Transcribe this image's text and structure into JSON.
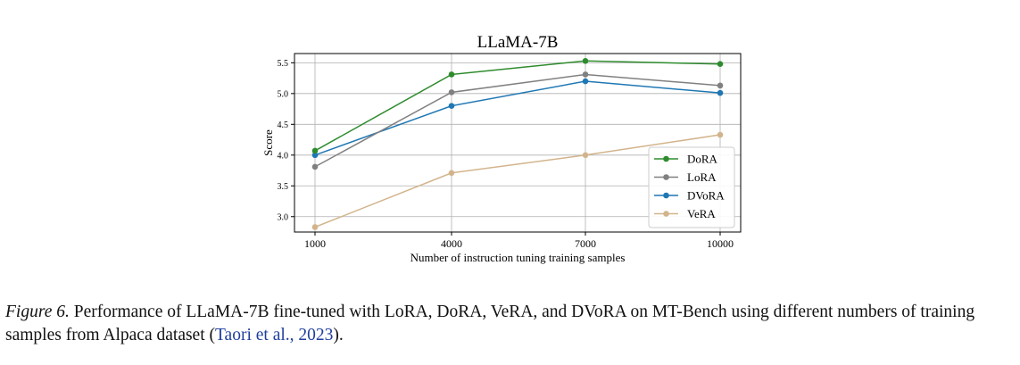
{
  "chart_data": {
    "type": "line",
    "title": "LLaMA-7B",
    "xlabel": "Number of instruction tuning training samples",
    "ylabel": "Score",
    "categories": [
      "1000",
      "4000",
      "7000",
      "10000"
    ],
    "y_ticks": [
      "3.0",
      "3.5",
      "4.0",
      "4.5",
      "5.0",
      "5.5"
    ],
    "ylim": [
      2.75,
      5.65
    ],
    "grid": true,
    "legend_position": "lower-right",
    "series": [
      {
        "name": "DoRA",
        "color": "#2e8b2e",
        "values": [
          4.07,
          5.31,
          5.53,
          5.48
        ]
      },
      {
        "name": "LoRA",
        "color": "#808080",
        "values": [
          3.81,
          5.02,
          5.31,
          5.13
        ]
      },
      {
        "name": "DVoRA",
        "color": "#1f77b4",
        "values": [
          4.0,
          4.8,
          5.2,
          5.01
        ]
      },
      {
        "name": "VeRA",
        "color": "#d2b48c",
        "values": [
          2.83,
          3.71,
          4.0,
          4.33
        ]
      }
    ]
  },
  "caption": {
    "label": "Figure 6.",
    "text": " Performance of LLaMA-7B fine-tuned with LoRA, DoRA, VeRA, and DVoRA on MT-Bench using different numbers of training samples from Alpaca dataset (",
    "citation": "Taori et al., 2023",
    "end": ")."
  }
}
